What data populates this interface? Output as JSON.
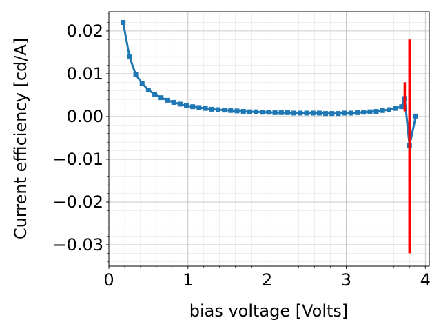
{
  "chart_data": {
    "type": "line",
    "title": "",
    "xlabel": "bias voltage [Volts]",
    "ylabel": "Current efficiency [cd/A]",
    "xlim": [
      0,
      4.05
    ],
    "ylim": [
      -0.035,
      0.0245
    ],
    "x_ticks": [
      0,
      1,
      2,
      3,
      4
    ],
    "x_tick_labels": [
      "0",
      "1",
      "2",
      "3",
      "4"
    ],
    "y_ticks": [
      0.02,
      0.01,
      0.0,
      -0.01,
      -0.02,
      -0.03
    ],
    "y_tick_labels": [
      "0.02",
      "0.01",
      "0.00",
      "−0.01",
      "−0.02",
      "−0.03"
    ],
    "grid": true,
    "minor_grid": true,
    "series": [
      {
        "color": "#1f77b4",
        "marker": "square",
        "x": [
          0.18,
          0.26,
          0.34,
          0.42,
          0.5,
          0.58,
          0.66,
          0.74,
          0.82,
          0.9,
          0.98,
          1.06,
          1.14,
          1.22,
          1.3,
          1.38,
          1.46,
          1.54,
          1.62,
          1.7,
          1.78,
          1.86,
          1.94,
          2.02,
          2.1,
          2.18,
          2.26,
          2.34,
          2.42,
          2.5,
          2.58,
          2.66,
          2.74,
          2.82,
          2.9,
          2.98,
          3.06,
          3.14,
          3.22,
          3.3,
          3.38,
          3.46,
          3.54,
          3.62,
          3.7,
          3.74,
          3.8,
          3.88
        ],
        "y": [
          0.022,
          0.014,
          0.0098,
          0.0078,
          0.0062,
          0.0052,
          0.0044,
          0.0038,
          0.0033,
          0.0029,
          0.0025,
          0.0023,
          0.0021,
          0.0019,
          0.0017,
          0.0016,
          0.0015,
          0.0014,
          0.0013,
          0.0012,
          0.0011,
          0.0011,
          0.001,
          0.001,
          0.0009,
          0.0009,
          0.0009,
          0.0008,
          0.0008,
          0.0008,
          0.0008,
          0.0008,
          0.0007,
          0.0007,
          0.0007,
          0.0008,
          0.0008,
          0.0009,
          0.001,
          0.0011,
          0.0012,
          0.0014,
          0.0016,
          0.0019,
          0.0023,
          0.0042,
          -0.0068,
          0.0001
        ],
        "error_bars": {
          "color": "#ff0000",
          "points": [
            {
              "x": 3.74,
              "low": 0.0012,
              "high": 0.008
            },
            {
              "x": 3.8,
              "low": -0.032,
              "high": 0.018
            }
          ]
        }
      }
    ]
  }
}
